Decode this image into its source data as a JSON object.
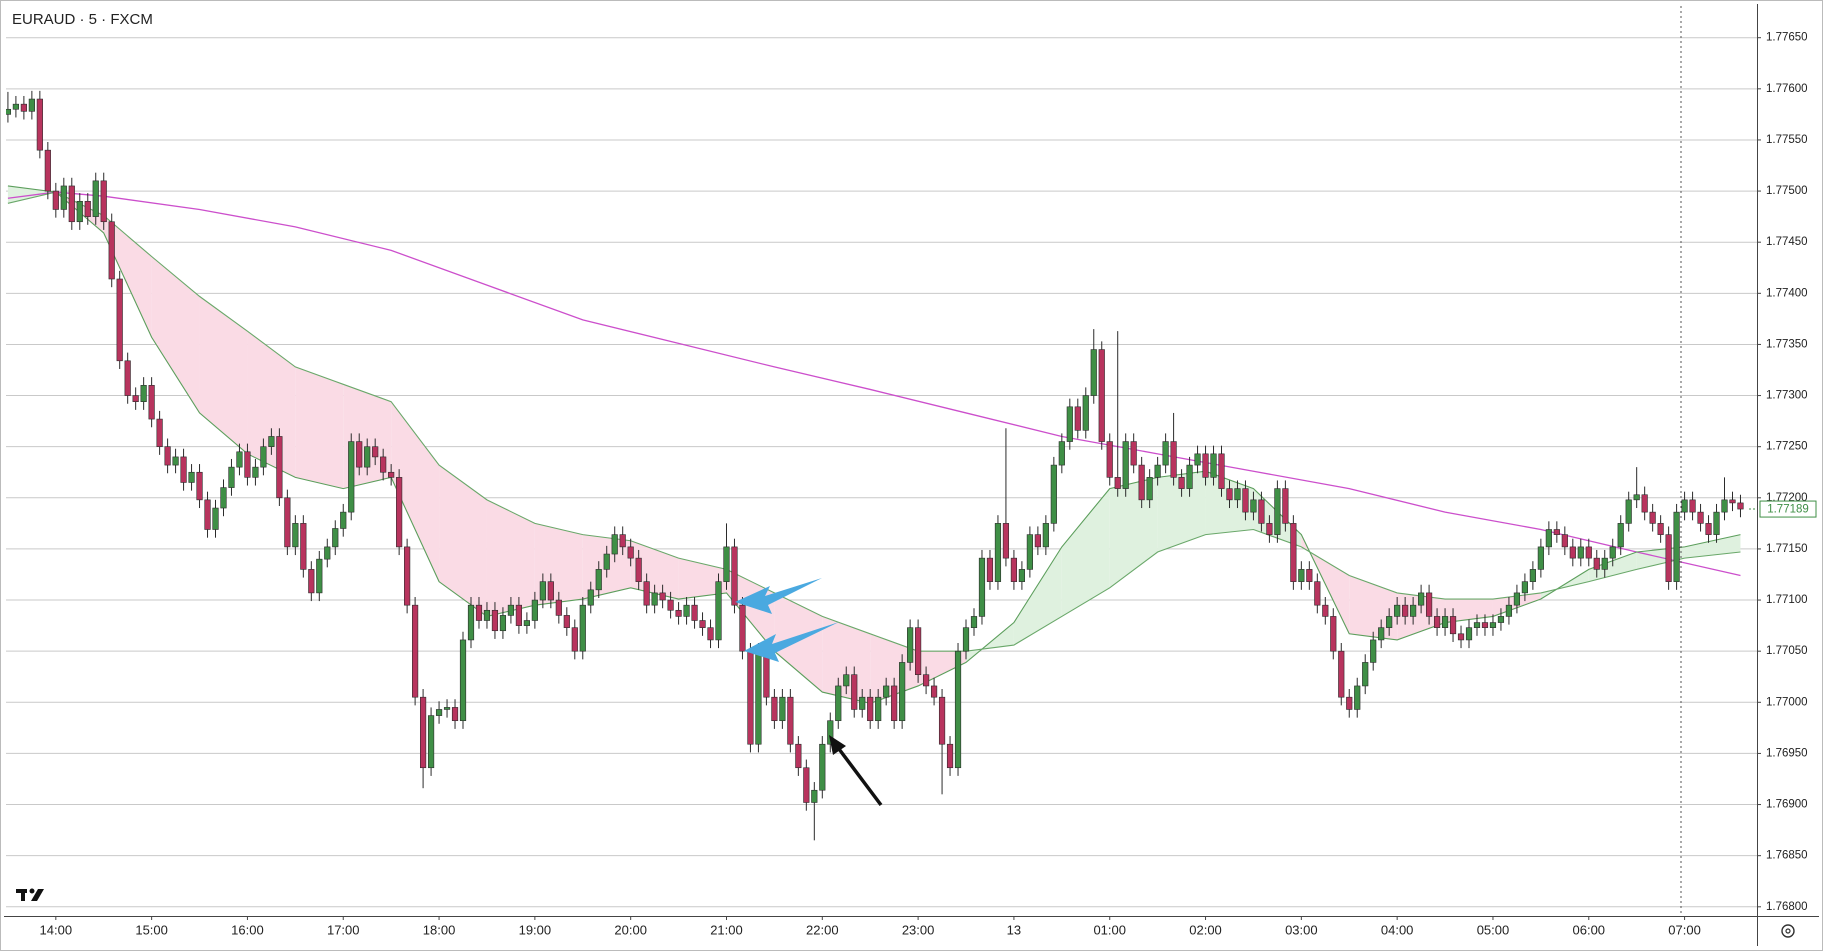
{
  "chart_data": {
    "type": "candlestick",
    "title": "EURAUD · 5 · FXCM",
    "open": [
      1.77575,
      1.7758,
      1.77585,
      1.77578,
      1.7759,
      1.7754,
      1.775,
      1.77482,
      1.77505,
      1.7747,
      1.7749,
      1.77475,
      1.7751,
      1.7747,
      1.77414,
      1.77334,
      1.773,
      1.77294,
      1.7731,
      1.77277,
      1.7725,
      1.77232,
      1.7724,
      1.77215,
      1.77225,
      1.77198,
      1.77169,
      1.7719,
      1.7721,
      1.7723,
      1.77245,
      1.7722,
      1.7723,
      1.7725,
      1.7726,
      1.772,
      1.77152,
      1.77175,
      1.7713,
      1.77107,
      1.7714,
      1.77152,
      1.7717,
      1.77186,
      1.77255,
      1.7723,
      1.7725,
      1.7724,
      1.77225,
      1.7722,
      1.77152,
      1.77095,
      1.77005,
      1.76936,
      1.76987,
      1.76993,
      1.76995,
      1.76982,
      1.77061,
      1.77095,
      1.7708,
      1.7709,
      1.7707,
      1.77085,
      1.77095,
      1.77075,
      1.7708,
      1.771,
      1.77118,
      1.771,
      1.77085,
      1.77073,
      1.7705,
      1.77095,
      1.7711,
      1.7713,
      1.77145,
      1.77164,
      1.77152,
      1.77141,
      1.77118,
      1.77095,
      1.77107,
      1.771,
      1.7709,
      1.77084,
      1.77095,
      1.7708,
      1.77073,
      1.77061,
      1.77118,
      1.77152,
      1.77095,
      1.7705,
      1.76959,
      1.7705,
      1.77005,
      1.76982,
      1.77005,
      1.76959,
      1.76936,
      1.76902,
      1.76914,
      1.76959,
      1.76982,
      1.77016,
      1.77027,
      1.76993,
      1.77005,
      1.76982,
      1.77005,
      1.77016,
      1.76982,
      1.77039,
      1.77073,
      1.77027,
      1.77016,
      1.77005,
      1.76959,
      1.76936,
      1.7705,
      1.77073,
      1.77084,
      1.77141,
      1.77118,
      1.77175,
      1.77141,
      1.77118,
      1.7713,
      1.77164,
      1.77152,
      1.77175,
      1.77232,
      1.77255,
      1.77289,
      1.77266,
      1.773,
      1.77345,
      1.77255,
      1.7722,
      1.77209,
      1.77255,
      1.77232,
      1.77198,
      1.7722,
      1.77232,
      1.77255,
      1.7722,
      1.77209,
      1.77232,
      1.77243,
      1.7722,
      1.77243,
      1.77209,
      1.77198,
      1.77209,
      1.77186,
      1.77198,
      1.77175,
      1.77164,
      1.77209,
      1.77175,
      1.77118,
      1.7713,
      1.77118,
      1.77095,
      1.77084,
      1.7705,
      1.77005,
      1.76993,
      1.77016,
      1.77039,
      1.77061,
      1.77073,
      1.77084,
      1.77095,
      1.77084,
      1.77095,
      1.77107,
      1.77084,
      1.77073,
      1.77084,
      1.77067,
      1.77061,
      1.77073,
      1.77078,
      1.77073,
      1.77078,
      1.77084,
      1.77095,
      1.77107,
      1.77118,
      1.7713,
      1.77152,
      1.77169,
      1.77164,
      1.77152,
      1.77141,
      1.77152,
      1.77141,
      1.7713,
      1.77141,
      1.77152,
      1.77175,
      1.77198,
      1.77203,
      1.77186,
      1.77175,
      1.77164,
      1.77118,
      1.77186,
      1.77198,
      1.77186,
      1.77175,
      1.77164,
      1.77186,
      1.77198,
      1.77195
    ],
    "high": [
      1.77597,
      1.77593,
      1.77593,
      1.77598,
      1.77598,
      1.77548,
      1.77508,
      1.77513,
      1.77513,
      1.77498,
      1.77498,
      1.77518,
      1.77518,
      1.77478,
      1.77422,
      1.77342,
      1.77308,
      1.77318,
      1.77318,
      1.77285,
      1.77258,
      1.77248,
      1.77248,
      1.77233,
      1.77233,
      1.77206,
      1.77198,
      1.77218,
      1.77238,
      1.77253,
      1.77253,
      1.77238,
      1.77258,
      1.77268,
      1.77268,
      1.77208,
      1.77183,
      1.77183,
      1.77138,
      1.77148,
      1.7716,
      1.77178,
      1.77194,
      1.77263,
      1.77263,
      1.77258,
      1.77258,
      1.77248,
      1.77233,
      1.77228,
      1.7716,
      1.77103,
      1.77013,
      1.76995,
      1.77001,
      1.77003,
      1.77003,
      1.77069,
      1.77103,
      1.77103,
      1.77098,
      1.77098,
      1.77093,
      1.77103,
      1.77103,
      1.77088,
      1.77108,
      1.77126,
      1.77126,
      1.77108,
      1.77093,
      1.77081,
      1.77103,
      1.77118,
      1.77138,
      1.77153,
      1.77172,
      1.77172,
      1.7716,
      1.77149,
      1.77126,
      1.77115,
      1.77115,
      1.77108,
      1.77098,
      1.77103,
      1.77103,
      1.77088,
      1.77081,
      1.77126,
      1.77175,
      1.7716,
      1.77103,
      1.77058,
      1.77058,
      1.77058,
      1.77013,
      1.77013,
      1.77013,
      1.76967,
      1.76944,
      1.76922,
      1.76967,
      1.7699,
      1.77024,
      1.77035,
      1.77035,
      1.77013,
      1.77013,
      1.77013,
      1.77024,
      1.77024,
      1.77047,
      1.77081,
      1.77081,
      1.77035,
      1.77024,
      1.77013,
      1.76967,
      1.77058,
      1.77081,
      1.77092,
      1.77149,
      1.77149,
      1.77183,
      1.77268,
      1.77149,
      1.77138,
      1.77172,
      1.77172,
      1.77183,
      1.7724,
      1.77263,
      1.77297,
      1.77297,
      1.77308,
      1.77365,
      1.77353,
      1.77263,
      1.77363,
      1.77263,
      1.77263,
      1.7724,
      1.77228,
      1.7724,
      1.77263,
      1.77283,
      1.77228,
      1.7724,
      1.77251,
      1.77251,
      1.77251,
      1.77251,
      1.77217,
      1.77217,
      1.77217,
      1.77206,
      1.77206,
      1.77183,
      1.77217,
      1.77217,
      1.77183,
      1.77138,
      1.77138,
      1.77126,
      1.77103,
      1.77092,
      1.77058,
      1.77013,
      1.77024,
      1.77047,
      1.77069,
      1.77081,
      1.77092,
      1.77103,
      1.77103,
      1.77103,
      1.77115,
      1.77115,
      1.77092,
      1.77092,
      1.77092,
      1.77075,
      1.77081,
      1.77086,
      1.77086,
      1.77086,
      1.77092,
      1.77103,
      1.77115,
      1.77126,
      1.77138,
      1.7716,
      1.77177,
      1.77177,
      1.77172,
      1.7716,
      1.7716,
      1.7716,
      1.77149,
      1.77149,
      1.7716,
      1.77183,
      1.77206,
      1.7723,
      1.77211,
      1.77194,
      1.77183,
      1.77172,
      1.77194,
      1.77206,
      1.77206,
      1.77194,
      1.77183,
      1.77194,
      1.7722,
      1.77206,
      1.77203
    ],
    "low": [
      1.77567,
      1.77572,
      1.7757,
      1.7757,
      1.77532,
      1.77492,
      1.77474,
      1.77474,
      1.77462,
      1.77462,
      1.77467,
      1.77467,
      1.77462,
      1.77406,
      1.77326,
      1.77292,
      1.77286,
      1.77286,
      1.77269,
      1.77242,
      1.77224,
      1.77224,
      1.77207,
      1.77207,
      1.7719,
      1.77161,
      1.77161,
      1.77182,
      1.77202,
      1.77222,
      1.77212,
      1.77212,
      1.77222,
      1.77242,
      1.77192,
      1.77144,
      1.77144,
      1.77122,
      1.77099,
      1.77099,
      1.77132,
      1.77144,
      1.77162,
      1.77178,
      1.77222,
      1.77222,
      1.77232,
      1.77217,
      1.77212,
      1.77144,
      1.77087,
      1.76997,
      1.76916,
      1.76928,
      1.76979,
      1.76985,
      1.76974,
      1.76974,
      1.77053,
      1.77072,
      1.77072,
      1.77062,
      1.77062,
      1.77077,
      1.77067,
      1.77067,
      1.77072,
      1.77092,
      1.77092,
      1.77077,
      1.77065,
      1.77042,
      1.77042,
      1.77087,
      1.77102,
      1.77122,
      1.77137,
      1.77144,
      1.77133,
      1.7711,
      1.77087,
      1.77087,
      1.77092,
      1.77082,
      1.77076,
      1.77076,
      1.77072,
      1.77065,
      1.77053,
      1.77053,
      1.7711,
      1.77087,
      1.77042,
      1.76951,
      1.76951,
      1.76997,
      1.76974,
      1.76974,
      1.76951,
      1.76928,
      1.76894,
      1.76865,
      1.76906,
      1.76951,
      1.76974,
      1.77008,
      1.76985,
      1.76985,
      1.76974,
      1.76974,
      1.76997,
      1.76974,
      1.76974,
      1.77031,
      1.77019,
      1.77008,
      1.76997,
      1.7691,
      1.76928,
      1.76928,
      1.77042,
      1.77065,
      1.77076,
      1.7711,
      1.7711,
      1.77133,
      1.7711,
      1.7711,
      1.77122,
      1.77144,
      1.77144,
      1.77167,
      1.77224,
      1.77247,
      1.77258,
      1.77258,
      1.77292,
      1.77247,
      1.77212,
      1.77201,
      1.77201,
      1.77224,
      1.7719,
      1.7719,
      1.77212,
      1.77224,
      1.77212,
      1.77201,
      1.77201,
      1.77224,
      1.77212,
      1.77212,
      1.77201,
      1.7719,
      1.7719,
      1.77178,
      1.77178,
      1.77167,
      1.77156,
      1.77156,
      1.77167,
      1.7711,
      1.7711,
      1.7711,
      1.77087,
      1.77076,
      1.77042,
      1.76997,
      1.76985,
      1.76985,
      1.77008,
      1.77031,
      1.77053,
      1.77065,
      1.77076,
      1.77076,
      1.77076,
      1.77087,
      1.77076,
      1.77065,
      1.77065,
      1.77059,
      1.77053,
      1.77053,
      1.77065,
      1.77065,
      1.77065,
      1.7707,
      1.77076,
      1.77087,
      1.77099,
      1.7711,
      1.77122,
      1.77144,
      1.77156,
      1.77144,
      1.77133,
      1.77133,
      1.77133,
      1.77122,
      1.77122,
      1.77133,
      1.77144,
      1.77167,
      1.7719,
      1.77178,
      1.77167,
      1.77156,
      1.7711,
      1.7711,
      1.77178,
      1.77178,
      1.77167,
      1.77156,
      1.77156,
      1.77178,
      1.77187,
      1.77181
    ],
    "close": [
      1.7758,
      1.77585,
      1.77578,
      1.7759,
      1.7754,
      1.775,
      1.77482,
      1.77505,
      1.7747,
      1.7749,
      1.77475,
      1.7751,
      1.7747,
      1.77414,
      1.77334,
      1.773,
      1.77294,
      1.7731,
      1.77277,
      1.7725,
      1.77232,
      1.7724,
      1.77215,
      1.77225,
      1.77198,
      1.77169,
      1.7719,
      1.7721,
      1.7723,
      1.77245,
      1.7722,
      1.7723,
      1.7725,
      1.7726,
      1.772,
      1.77152,
      1.77175,
      1.7713,
      1.77107,
      1.7714,
      1.77152,
      1.7717,
      1.77186,
      1.77255,
      1.7723,
      1.7725,
      1.7724,
      1.77225,
      1.7722,
      1.77152,
      1.77095,
      1.77005,
      1.76936,
      1.76987,
      1.76993,
      1.76995,
      1.76982,
      1.77061,
      1.77095,
      1.7708,
      1.7709,
      1.7707,
      1.77085,
      1.77095,
      1.77075,
      1.7708,
      1.771,
      1.77118,
      1.771,
      1.77085,
      1.77073,
      1.7705,
      1.77095,
      1.7711,
      1.7713,
      1.77145,
      1.77164,
      1.77152,
      1.77141,
      1.77118,
      1.77095,
      1.77107,
      1.771,
      1.7709,
      1.77084,
      1.77095,
      1.7708,
      1.77073,
      1.77061,
      1.77118,
      1.77152,
      1.77095,
      1.7705,
      1.76959,
      1.7705,
      1.77005,
      1.76982,
      1.77005,
      1.76959,
      1.76936,
      1.76902,
      1.76914,
      1.76959,
      1.76982,
      1.77016,
      1.77027,
      1.76993,
      1.77005,
      1.76982,
      1.77005,
      1.77016,
      1.76982,
      1.77039,
      1.77073,
      1.77027,
      1.77016,
      1.77005,
      1.76959,
      1.76936,
      1.7705,
      1.77073,
      1.77084,
      1.77141,
      1.77118,
      1.77175,
      1.77141,
      1.77118,
      1.7713,
      1.77164,
      1.77152,
      1.77175,
      1.77232,
      1.77255,
      1.77289,
      1.77266,
      1.773,
      1.77345,
      1.77255,
      1.7722,
      1.77209,
      1.77255,
      1.77232,
      1.77198,
      1.7722,
      1.77232,
      1.77255,
      1.7722,
      1.77209,
      1.77232,
      1.77243,
      1.7722,
      1.77243,
      1.77209,
      1.77198,
      1.77209,
      1.77186,
      1.77198,
      1.77175,
      1.77164,
      1.77209,
      1.77175,
      1.77118,
      1.7713,
      1.77118,
      1.77095,
      1.77084,
      1.7705,
      1.77005,
      1.76993,
      1.77016,
      1.77039,
      1.77061,
      1.77073,
      1.77084,
      1.77095,
      1.77084,
      1.77095,
      1.77107,
      1.77084,
      1.77073,
      1.77084,
      1.77067,
      1.77061,
      1.77073,
      1.77078,
      1.77073,
      1.77078,
      1.77084,
      1.77095,
      1.77107,
      1.77118,
      1.7713,
      1.77152,
      1.77169,
      1.77164,
      1.77152,
      1.77141,
      1.77152,
      1.77141,
      1.7713,
      1.77141,
      1.77152,
      1.77175,
      1.77198,
      1.77203,
      1.77186,
      1.77175,
      1.77164,
      1.77118,
      1.77186,
      1.77198,
      1.77186,
      1.77175,
      1.77164,
      1.77186,
      1.77198,
      1.77195,
      1.77189
    ],
    "up_color": "#3f8f46",
    "down_color": "#b8345e",
    "wick_color": "#2b2b2b",
    "xlim": [
      -0.24,
      219.07
    ],
    "ylim": [
      1.76791,
      1.77681
    ],
    "grid": true,
    "yticks": [
      {
        "value": 1.768,
        "label": "1.76800"
      },
      {
        "value": 1.7685,
        "label": "1.76850"
      },
      {
        "value": 1.769,
        "label": "1.76900"
      },
      {
        "value": 1.7695,
        "label": "1.76950"
      },
      {
        "value": 1.77,
        "label": "1.77000"
      },
      {
        "value": 1.7705,
        "label": "1.77050"
      },
      {
        "value": 1.771,
        "label": "1.77100"
      },
      {
        "value": 1.7715,
        "label": "1.77150"
      },
      {
        "value": 1.772,
        "label": "1.77200"
      },
      {
        "value": 1.7725,
        "label": "1.77250"
      },
      {
        "value": 1.773,
        "label": "1.77300"
      },
      {
        "value": 1.7735,
        "label": "1.77350"
      },
      {
        "value": 1.774,
        "label": "1.77400"
      },
      {
        "value": 1.7745,
        "label": "1.77450"
      },
      {
        "value": 1.775,
        "label": "1.77500"
      },
      {
        "value": 1.7755,
        "label": "1.77550"
      },
      {
        "value": 1.776,
        "label": "1.77600"
      },
      {
        "value": 1.7765,
        "label": "1.77650"
      }
    ],
    "xticks": [
      {
        "value": 6,
        "label": "14:00"
      },
      {
        "value": 18,
        "label": "15:00"
      },
      {
        "value": 30,
        "label": "16:00"
      },
      {
        "value": 42,
        "label": "17:00"
      },
      {
        "value": 54,
        "label": "18:00"
      },
      {
        "value": 66,
        "label": "19:00"
      },
      {
        "value": 78,
        "label": "20:00"
      },
      {
        "value": 90,
        "label": "21:00"
      },
      {
        "value": 102,
        "label": "22:00"
      },
      {
        "value": 114,
        "label": "23:00"
      },
      {
        "value": 126,
        "label": "13"
      },
      {
        "value": 138,
        "label": "01:00"
      },
      {
        "value": 150,
        "label": "02:00"
      },
      {
        "value": 162,
        "label": "03:00"
      },
      {
        "value": 174,
        "label": "04:00"
      },
      {
        "value": 186,
        "label": "05:00"
      },
      {
        "value": 198,
        "label": "06:00"
      },
      {
        "value": 210,
        "label": "07:00"
      }
    ],
    "overlays": [
      {
        "color": "#cc4fcc",
        "x": [
          0,
          6,
          12,
          24,
          36,
          48,
          60,
          72,
          84,
          96,
          108,
          120,
          132,
          144,
          156,
          168,
          180,
          192,
          204,
          217
        ],
        "values": [
          1.77493,
          1.77499,
          1.77495,
          1.77482,
          1.77465,
          1.77442,
          1.77408,
          1.77374,
          1.77351,
          1.77328,
          1.77306,
          1.77283,
          1.7726,
          1.77243,
          1.77226,
          1.77209,
          1.77186,
          1.77169,
          1.77147,
          1.77124
        ]
      },
      {
        "color": "#5c9e5c",
        "x": [
          0,
          6,
          12,
          18,
          24,
          30,
          36,
          42,
          48,
          54,
          60,
          66,
          72,
          78,
          84,
          90,
          96,
          102,
          108,
          114,
          120,
          126,
          132,
          138,
          144,
          150,
          156,
          162,
          168,
          174,
          180,
          186,
          192,
          198,
          204,
          210,
          217
        ],
        "values": [
          1.77505,
          1.77499,
          1.77459,
          1.77357,
          1.77283,
          1.77243,
          1.7722,
          1.77209,
          1.7722,
          1.77118,
          1.77084,
          1.77095,
          1.77101,
          1.77112,
          1.77101,
          1.77107,
          1.7705,
          1.7701,
          1.76999,
          1.77016,
          1.77039,
          1.77078,
          1.77152,
          1.77209,
          1.7722,
          1.77226,
          1.77209,
          1.77164,
          1.77067,
          1.77061,
          1.77078,
          1.77084,
          1.77101,
          1.7713,
          1.77147,
          1.77152,
          1.77164
        ]
      },
      {
        "color": "#6aa86a",
        "x": [
          0,
          6,
          12,
          18,
          24,
          30,
          36,
          42,
          48,
          54,
          60,
          66,
          72,
          78,
          84,
          90,
          96,
          102,
          108,
          114,
          120,
          126,
          132,
          138,
          144,
          150,
          156,
          162,
          168,
          174,
          180,
          186,
          192,
          198,
          204,
          210,
          217
        ],
        "values": [
          1.77488,
          1.77499,
          1.77476,
          1.77436,
          1.77397,
          1.77363,
          1.77328,
          1.77311,
          1.77294,
          1.77232,
          1.77198,
          1.77175,
          1.77164,
          1.77158,
          1.77141,
          1.7713,
          1.77107,
          1.77084,
          1.77067,
          1.7705,
          1.7705,
          1.77056,
          1.77084,
          1.77112,
          1.77147,
          1.77164,
          1.77169,
          1.77152,
          1.77124,
          1.77107,
          1.77101,
          1.77101,
          1.77107,
          1.77118,
          1.7713,
          1.77141,
          1.77147
        ]
      }
    ],
    "cloud_up_color": "#dff1df",
    "cloud_down_color": "#fadbe5"
  }
}
